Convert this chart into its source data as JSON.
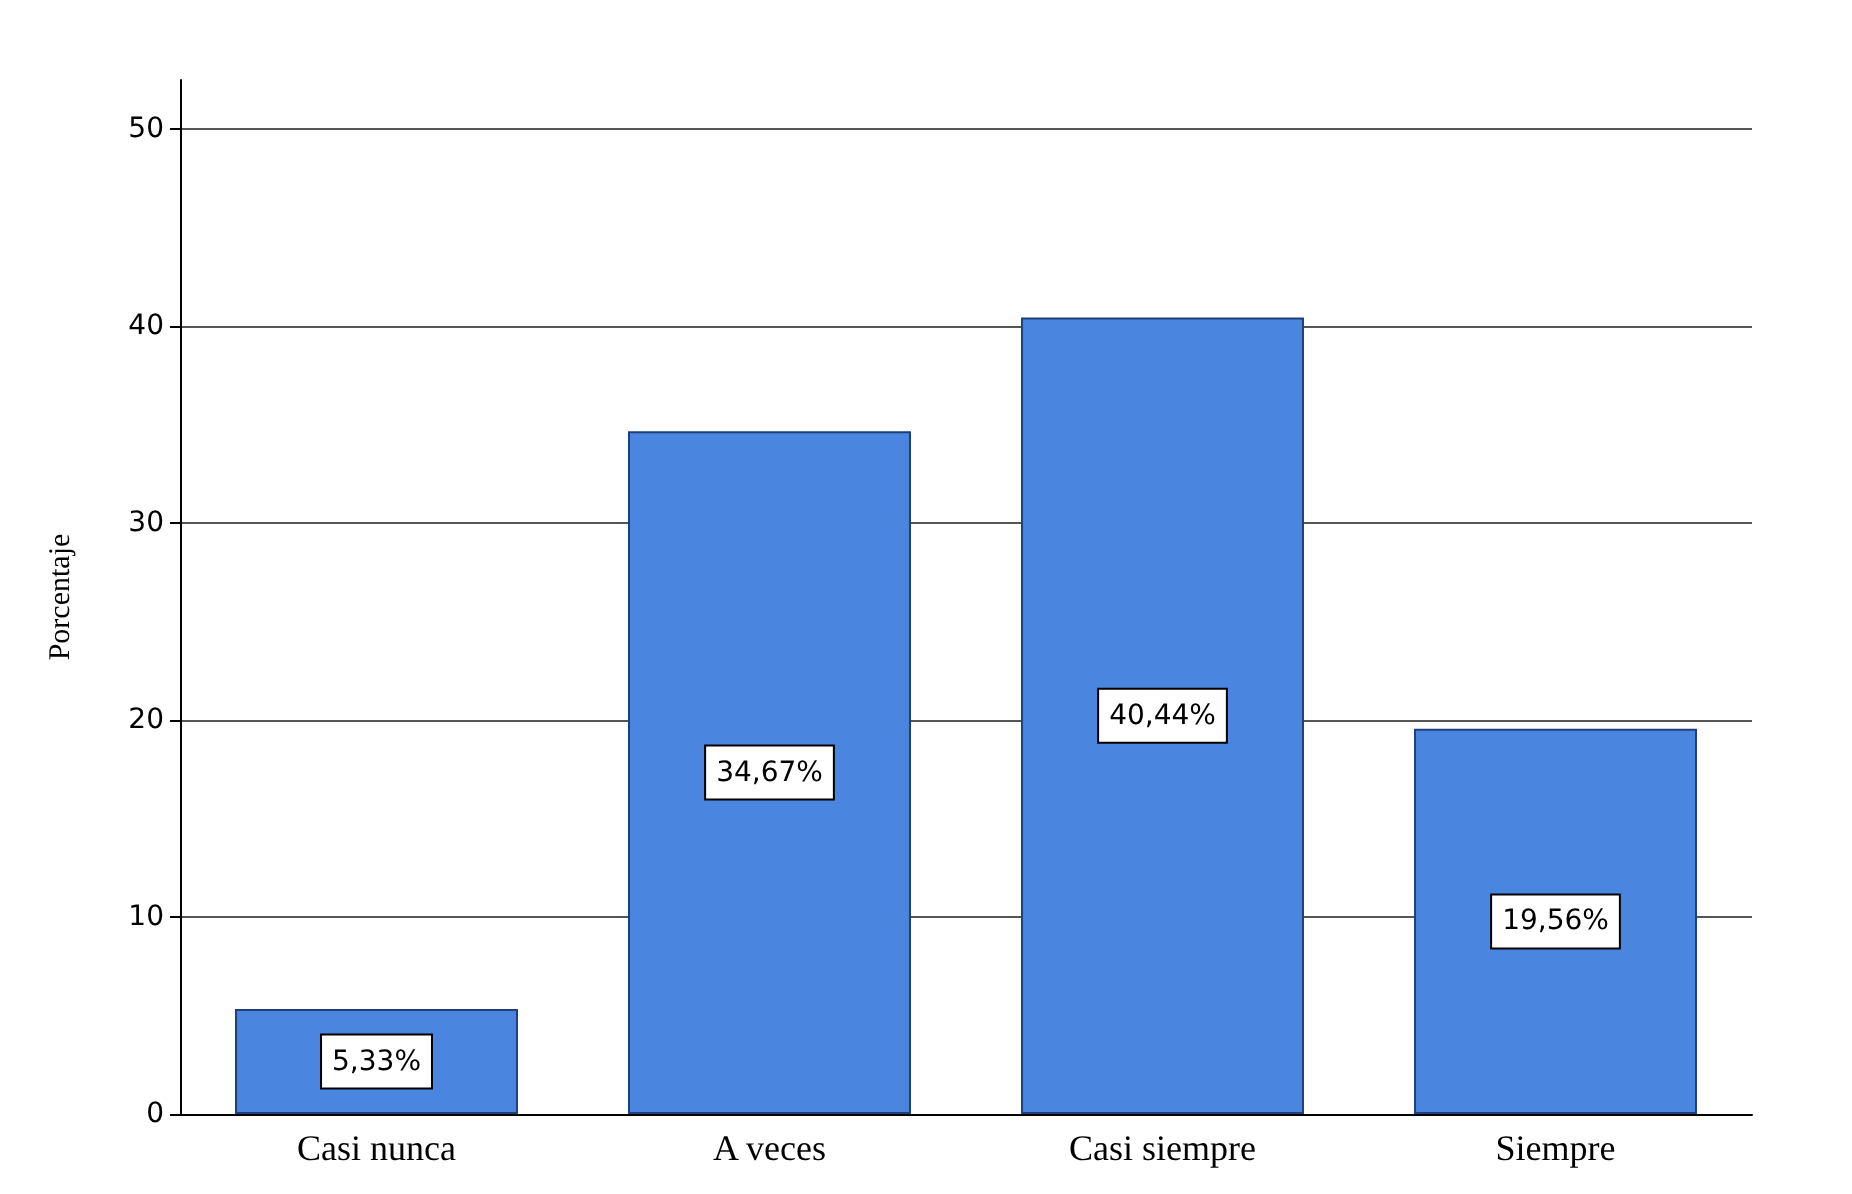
{
  "chart_data": {
    "type": "bar",
    "ylabel": "Porcentaje",
    "categories": [
      "Casi nunca",
      "A veces",
      "Casi siempre",
      "Siempre"
    ],
    "values": [
      5.33,
      34.67,
      40.44,
      19.56
    ],
    "value_labels": [
      "5,33%",
      "34,67%",
      "40,44%",
      "19,56%"
    ],
    "color": "#4a86e0",
    "ylim": [
      0,
      52.5
    ],
    "yticks": [
      0,
      10,
      20,
      30,
      40,
      50
    ],
    "grid": "y"
  }
}
